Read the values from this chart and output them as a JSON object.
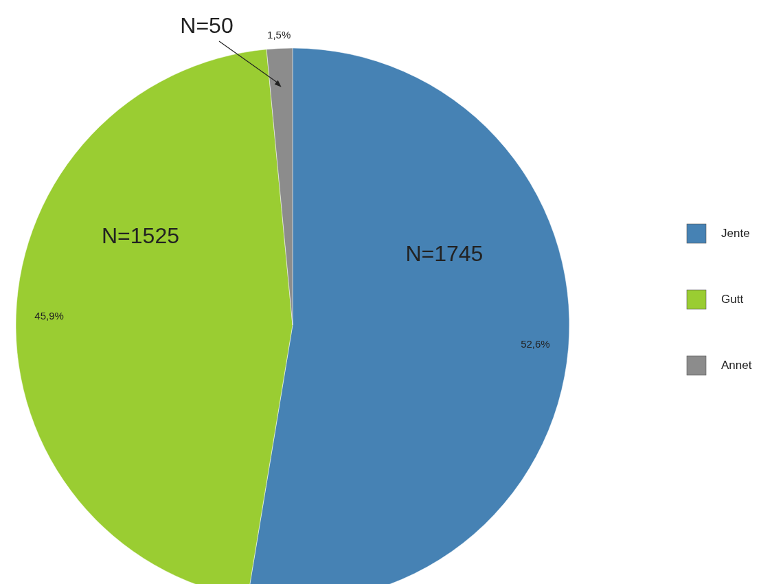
{
  "chart_data": {
    "type": "pie",
    "categories": [
      "Jente",
      "Gutt",
      "Annet"
    ],
    "values": [
      52.6,
      45.9,
      1.5
    ],
    "colors": [
      "#4682b4",
      "#9acd32",
      "#8c8c8c"
    ],
    "value_labels": [
      "52,6%",
      "45,9%",
      "1,5%"
    ],
    "annotations": [
      {
        "text": "N=1745",
        "x": "Jente"
      },
      {
        "text": "N=1525",
        "x": "Gutt"
      },
      {
        "text": "N=50",
        "x": "Annet"
      }
    ],
    "legend": "right"
  }
}
